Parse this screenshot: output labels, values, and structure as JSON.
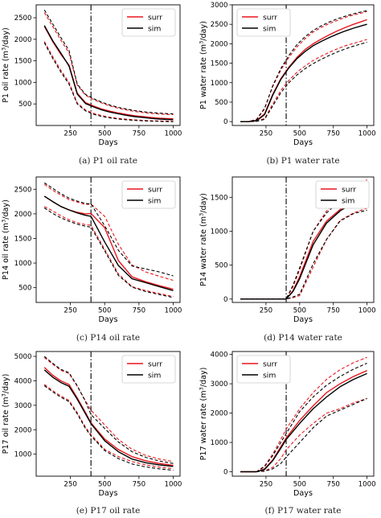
{
  "chart_data": [
    {
      "type": "line",
      "caption": "(a) P1 oil rate",
      "xlabel": "Days",
      "ylabel": "P1 oil rate (m³/day)",
      "xlim": [
        0,
        1050
      ],
      "ylim": [
        0,
        2800
      ],
      "xticks": [
        250,
        500,
        750,
        1000
      ],
      "yticks": [
        500,
        1000,
        1500,
        2000,
        2500
      ],
      "vline_x": 400,
      "legend": [
        "surr",
        "sim"
      ],
      "legend_position": "top-right",
      "colors": {
        "surr": "#e8171d",
        "sim": "#000000"
      },
      "x": [
        60,
        120,
        180,
        240,
        300,
        360,
        420,
        480,
        540,
        600,
        660,
        720,
        780,
        840,
        900,
        960,
        1000
      ],
      "series": [
        {
          "name": "surr",
          "role": "mean",
          "values": [
            2300,
            1950,
            1650,
            1400,
            750,
            530,
            450,
            380,
            330,
            290,
            255,
            225,
            205,
            185,
            170,
            160,
            155
          ]
        },
        {
          "name": "surr",
          "role": "upper",
          "values": [
            2620,
            2300,
            1980,
            1680,
            940,
            700,
            600,
            520,
            450,
            400,
            360,
            325,
            300,
            280,
            265,
            255,
            250
          ]
        },
        {
          "name": "surr",
          "role": "lower",
          "values": [
            1950,
            1600,
            1280,
            1000,
            520,
            360,
            280,
            230,
            190,
            165,
            145,
            130,
            120,
            110,
            105,
            100,
            98
          ]
        },
        {
          "name": "sim",
          "role": "mean",
          "values": [
            2320,
            1970,
            1680,
            1380,
            730,
            510,
            430,
            360,
            310,
            270,
            235,
            205,
            185,
            165,
            150,
            140,
            135
          ]
        },
        {
          "name": "sim",
          "role": "upper",
          "values": [
            2680,
            2360,
            2040,
            1740,
            960,
            720,
            620,
            540,
            470,
            420,
            380,
            345,
            320,
            300,
            285,
            275,
            270
          ]
        },
        {
          "name": "sim",
          "role": "lower",
          "values": [
            1920,
            1560,
            1240,
            960,
            500,
            340,
            260,
            210,
            175,
            150,
            132,
            118,
            108,
            100,
            95,
            90,
            88
          ]
        }
      ]
    },
    {
      "type": "line",
      "caption": "(b) P1 water rate",
      "xlabel": "Days",
      "ylabel": "P1 water rate (m³/day)",
      "xlim": [
        0,
        1050
      ],
      "ylim": [
        -100,
        3000
      ],
      "xticks": [
        250,
        500,
        750,
        1000
      ],
      "yticks": [
        0,
        500,
        1000,
        1500,
        2000,
        2500,
        3000
      ],
      "vline_x": 400,
      "legend": [
        "surr",
        "sim"
      ],
      "legend_position": "top-left",
      "colors": {
        "surr": "#e8171d",
        "sim": "#000000"
      },
      "x": [
        60,
        120,
        180,
        240,
        300,
        360,
        420,
        480,
        540,
        600,
        660,
        720,
        780,
        840,
        900,
        960,
        1000
      ],
      "series": [
        {
          "name": "surr",
          "role": "mean",
          "values": [
            0,
            0,
            30,
            200,
            700,
            1100,
            1400,
            1650,
            1850,
            2000,
            2120,
            2230,
            2330,
            2420,
            2500,
            2570,
            2620
          ]
        },
        {
          "name": "surr",
          "role": "upper",
          "values": [
            0,
            0,
            60,
            350,
            900,
            1320,
            1650,
            1920,
            2130,
            2300,
            2420,
            2520,
            2600,
            2680,
            2740,
            2790,
            2830
          ]
        },
        {
          "name": "surr",
          "role": "lower",
          "values": [
            0,
            0,
            10,
            80,
            450,
            800,
            1060,
            1270,
            1430,
            1570,
            1680,
            1780,
            1870,
            1950,
            2010,
            2070,
            2110
          ]
        },
        {
          "name": "sim",
          "role": "mean",
          "values": [
            0,
            0,
            20,
            180,
            680,
            1080,
            1380,
            1620,
            1800,
            1950,
            2060,
            2160,
            2250,
            2330,
            2400,
            2460,
            2500
          ]
        },
        {
          "name": "sim",
          "role": "upper",
          "values": [
            0,
            0,
            50,
            330,
            920,
            1360,
            1700,
            1980,
            2180,
            2340,
            2460,
            2560,
            2640,
            2710,
            2770,
            2820,
            2850
          ]
        },
        {
          "name": "sim",
          "role": "lower",
          "values": [
            0,
            0,
            5,
            60,
            400,
            740,
            1000,
            1200,
            1360,
            1490,
            1600,
            1700,
            1790,
            1870,
            1940,
            2000,
            2040
          ]
        }
      ]
    },
    {
      "type": "line",
      "caption": "(c) P14 oil rate",
      "xlabel": "Days",
      "ylabel": "P14 oil rate (m³/day)",
      "xlim": [
        0,
        1050
      ],
      "ylim": [
        200,
        2750
      ],
      "xticks": [
        250,
        500,
        750,
        1000
      ],
      "yticks": [
        500,
        1000,
        1500,
        2000,
        2500
      ],
      "vline_x": 400,
      "legend": [
        "surr",
        "sim"
      ],
      "legend_position": "top-right",
      "colors": {
        "surr": "#e8171d",
        "sim": "#000000"
      },
      "x": [
        60,
        120,
        180,
        240,
        300,
        360,
        400,
        500,
        600,
        700,
        800,
        900,
        1000
      ],
      "series": [
        {
          "name": "surr",
          "role": "mean",
          "values": [
            2360,
            2250,
            2150,
            2080,
            2030,
            2000,
            2010,
            1720,
            1050,
            720,
            620,
            540,
            470
          ]
        },
        {
          "name": "surr",
          "role": "upper",
          "values": [
            2600,
            2480,
            2380,
            2290,
            2240,
            2190,
            2200,
            1950,
            1380,
            960,
            820,
            730,
            650
          ]
        },
        {
          "name": "surr",
          "role": "lower",
          "values": [
            2150,
            2060,
            1960,
            1880,
            1820,
            1780,
            1770,
            1280,
            780,
            520,
            440,
            380,
            320
          ]
        },
        {
          "name": "sim",
          "role": "mean",
          "values": [
            2360,
            2250,
            2150,
            2080,
            2020,
            1970,
            1950,
            1430,
            950,
            680,
            600,
            520,
            440
          ]
        },
        {
          "name": "sim",
          "role": "upper",
          "values": [
            2630,
            2520,
            2410,
            2320,
            2260,
            2210,
            2200,
            1760,
            1260,
            940,
            880,
            820,
            740
          ]
        },
        {
          "name": "sim",
          "role": "lower",
          "values": [
            2120,
            2010,
            1920,
            1850,
            1790,
            1750,
            1730,
            1250,
            750,
            510,
            420,
            360,
            300
          ]
        }
      ]
    },
    {
      "type": "line",
      "caption": "(d) P14 water rate",
      "xlabel": "Days",
      "ylabel": "P14 water rate (m³/day)",
      "xlim": [
        0,
        1050
      ],
      "ylim": [
        -50,
        1800
      ],
      "xticks": [
        250,
        500,
        750,
        1000
      ],
      "yticks": [
        0,
        500,
        1000,
        1500
      ],
      "vline_x": 400,
      "legend": [
        "surr",
        "sim"
      ],
      "legend_position": "top-right",
      "colors": {
        "surr": "#e8171d",
        "sim": "#000000"
      },
      "x": [
        60,
        120,
        180,
        240,
        300,
        360,
        400,
        450,
        500,
        600,
        700,
        800,
        900,
        1000
      ],
      "series": [
        {
          "name": "surr",
          "role": "mean",
          "values": [
            0,
            0,
            0,
            0,
            0,
            0,
            0,
            120,
            330,
            850,
            1150,
            1320,
            1450,
            1540
          ]
        },
        {
          "name": "surr",
          "role": "upper",
          "values": [
            0,
            0,
            0,
            0,
            0,
            0,
            0,
            180,
            430,
            1000,
            1300,
            1480,
            1640,
            1760
          ]
        },
        {
          "name": "surr",
          "role": "lower",
          "values": [
            0,
            0,
            0,
            0,
            0,
            0,
            0,
            20,
            50,
            470,
            880,
            1160,
            1270,
            1340
          ]
        },
        {
          "name": "sim",
          "role": "mean",
          "values": [
            0,
            0,
            0,
            0,
            0,
            0,
            0,
            110,
            300,
            800,
            1120,
            1300,
            1420,
            1540
          ]
        },
        {
          "name": "sim",
          "role": "upper",
          "values": [
            0,
            0,
            0,
            0,
            0,
            0,
            0,
            200,
            460,
            1000,
            1270,
            1450,
            1600,
            1700
          ]
        },
        {
          "name": "sim",
          "role": "lower",
          "values": [
            0,
            0,
            0,
            0,
            0,
            0,
            0,
            30,
            70,
            520,
            880,
            1150,
            1260,
            1310
          ]
        }
      ]
    },
    {
      "type": "line",
      "caption": "(e) P17 oil rate",
      "xlabel": "Days",
      "ylabel": "P17 oil rate (m³/day)",
      "xlim": [
        0,
        1050
      ],
      "ylim": [
        100,
        5200
      ],
      "xticks": [
        250,
        500,
        750,
        1000
      ],
      "yticks": [
        1000,
        2000,
        3000,
        4000,
        5000
      ],
      "vline_x": 400,
      "legend": [
        "surr",
        "sim"
      ],
      "legend_position": "top-right",
      "colors": {
        "surr": "#e8171d",
        "sim": "#000000"
      },
      "x": [
        60,
        120,
        180,
        240,
        300,
        360,
        400,
        500,
        600,
        700,
        800,
        900,
        1000
      ],
      "series": [
        {
          "name": "surr",
          "role": "mean",
          "values": [
            4550,
            4230,
            4000,
            3850,
            3300,
            2700,
            2280,
            1620,
            1190,
            900,
            730,
            620,
            540
          ]
        },
        {
          "name": "surr",
          "role": "upper",
          "values": [
            4950,
            4680,
            4430,
            4300,
            3780,
            3180,
            2800,
            2200,
            1600,
            1200,
            950,
            800,
            700
          ]
        },
        {
          "name": "surr",
          "role": "lower",
          "values": [
            3850,
            3600,
            3380,
            3200,
            2700,
            2100,
            1800,
            1200,
            900,
            700,
            560,
            470,
            410
          ]
        },
        {
          "name": "sim",
          "role": "mean",
          "values": [
            4450,
            4150,
            3930,
            3780,
            3250,
            2650,
            2250,
            1550,
            1100,
            800,
            650,
            560,
            500
          ]
        },
        {
          "name": "sim",
          "role": "upper",
          "values": [
            5000,
            4720,
            4470,
            4330,
            3800,
            3150,
            2620,
            2050,
            1500,
            1100,
            870,
            720,
            620
          ]
        },
        {
          "name": "sim",
          "role": "lower",
          "values": [
            3800,
            3550,
            3330,
            3150,
            2650,
            2050,
            1750,
            1150,
            820,
            600,
            480,
            400,
            340
          ]
        }
      ]
    },
    {
      "type": "line",
      "caption": "(f) P17 water rate",
      "xlabel": "Days",
      "ylabel": "P17 water rate (m³/day)",
      "xlim": [
        0,
        1050
      ],
      "ylim": [
        -150,
        4100
      ],
      "xticks": [
        250,
        500,
        750,
        1000
      ],
      "yticks": [
        0,
        1000,
        2000,
        3000,
        4000
      ],
      "vline_x": 400,
      "legend": [
        "surr",
        "sim"
      ],
      "legend_position": "top-left",
      "colors": {
        "surr": "#e8171d",
        "sim": "#000000"
      },
      "x": [
        60,
        120,
        180,
        240,
        300,
        360,
        400,
        500,
        600,
        700,
        800,
        900,
        1000
      ],
      "series": [
        {
          "name": "surr",
          "role": "mean",
          "values": [
            0,
            0,
            0,
            100,
            400,
            850,
            1150,
            1750,
            2250,
            2700,
            3000,
            3250,
            3450
          ]
        },
        {
          "name": "surr",
          "role": "upper",
          "values": [
            0,
            0,
            0,
            200,
            600,
            1100,
            1450,
            2150,
            2700,
            3150,
            3480,
            3720,
            3900
          ]
        },
        {
          "name": "surr",
          "role": "lower",
          "values": [
            0,
            0,
            0,
            30,
            150,
            450,
            750,
            1250,
            1650,
            2000,
            2150,
            2350,
            2500
          ]
        },
        {
          "name": "sim",
          "role": "mean",
          "values": [
            0,
            0,
            0,
            80,
            380,
            800,
            1100,
            1650,
            2150,
            2550,
            2900,
            3150,
            3350
          ]
        },
        {
          "name": "sim",
          "role": "upper",
          "values": [
            0,
            0,
            0,
            180,
            550,
            1000,
            1300,
            2050,
            2550,
            2950,
            3250,
            3500,
            3700
          ]
        },
        {
          "name": "sim",
          "role": "lower",
          "values": [
            0,
            0,
            0,
            20,
            100,
            280,
            500,
            1000,
            1500,
            1900,
            2100,
            2300,
            2500
          ]
        }
      ]
    }
  ]
}
